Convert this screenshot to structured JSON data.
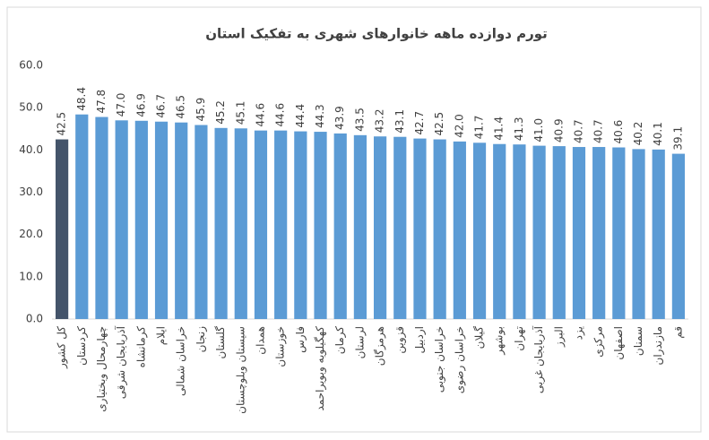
{
  "chart_data": {
    "type": "bar",
    "title": "تورم دوازده ماهه خانوارهای شهری به تفکیک استان",
    "categories": [
      "کل کشور",
      "کردستان",
      "چهارمحال وبختیاری",
      "آذربایجان شرقی",
      "کرمانشاه",
      "ایلام",
      "خراسان شمالی",
      "زنجان",
      "گلستان",
      "سیستان وبلوچستان",
      "همدان",
      "خوزستان",
      "فارس",
      "کهگیلویه وبویراحمد",
      "کرمان",
      "لرستان",
      "هرمزگان",
      "قزوین",
      "اردبیل",
      "خراسان جنوبی",
      "خراسان رضوی",
      "گیلان",
      "بوشهر",
      "تهران",
      "آذربایجان غربی",
      "البرز",
      "یزد",
      "مرکزی",
      "اصفهان",
      "سمنان",
      "مازندران",
      "قم"
    ],
    "values": [
      42.5,
      48.4,
      47.8,
      47.0,
      46.9,
      46.7,
      46.5,
      45.9,
      45.2,
      45.1,
      44.6,
      44.6,
      44.4,
      44.3,
      43.9,
      43.5,
      43.2,
      43.1,
      42.7,
      42.5,
      42.0,
      41.7,
      41.4,
      41.3,
      41.0,
      40.9,
      40.7,
      40.7,
      40.6,
      40.2,
      40.1,
      39.1
    ],
    "value_labels": [
      "42.5",
      "48.4",
      "47.8",
      "47.0",
      "46.9",
      "46.7",
      "46.5",
      "45.9",
      "45.2",
      "45.1",
      "44.6",
      "44.6",
      "44.4",
      "44.3",
      "43.9",
      "43.5",
      "43.2",
      "43.1",
      "42.7",
      "42.5",
      "42.0",
      "41.7",
      "41.4",
      "41.3",
      "41.0",
      "40.9",
      "40.7",
      "40.7",
      "40.6",
      "40.2",
      "40.1",
      "39.1"
    ],
    "colors": [
      "#44546a",
      "#5b9bd5",
      "#5b9bd5",
      "#5b9bd5",
      "#5b9bd5",
      "#5b9bd5",
      "#5b9bd5",
      "#5b9bd5",
      "#5b9bd5",
      "#5b9bd5",
      "#5b9bd5",
      "#5b9bd5",
      "#5b9bd5",
      "#5b9bd5",
      "#5b9bd5",
      "#5b9bd5",
      "#5b9bd5",
      "#5b9bd5",
      "#5b9bd5",
      "#5b9bd5",
      "#5b9bd5",
      "#5b9bd5",
      "#5b9bd5",
      "#5b9bd5",
      "#5b9bd5",
      "#5b9bd5",
      "#5b9bd5",
      "#5b9bd5",
      "#5b9bd5",
      "#5b9bd5",
      "#5b9bd5",
      "#5b9bd5"
    ],
    "ylim": [
      0,
      60
    ],
    "yticks": [
      {
        "value": 0,
        "label": "0.0"
      },
      {
        "value": 10,
        "label": "10.0"
      },
      {
        "value": 20,
        "label": "20.0"
      },
      {
        "value": 30,
        "label": "30.0"
      },
      {
        "value": 40,
        "label": "40.0"
      },
      {
        "value": 50,
        "label": "50.0"
      },
      {
        "value": 60,
        "label": "60.0"
      }
    ],
    "grid": false
  }
}
